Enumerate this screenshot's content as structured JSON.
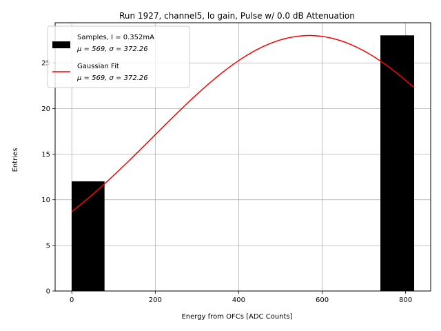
{
  "chart_data": {
    "type": "bar",
    "title": "Run 1927, channel5, lo gain, Pulse w/ 0.0 dB Attenuation",
    "xlabel": "Energy from OFCs [ADC Counts]",
    "ylabel": "Entries",
    "xlim": [
      -40,
      860
    ],
    "ylim": [
      0,
      29.4
    ],
    "xticks": [
      0,
      200,
      400,
      600,
      800
    ],
    "yticks": [
      0,
      5,
      10,
      15,
      20,
      25
    ],
    "grid": true,
    "legend_position": "top-left",
    "histogram": {
      "name": "Samples, I = 0.352mA",
      "name_line2": "μ = 569, σ = 372.26",
      "color": "#000000",
      "bins": [
        {
          "x0": 0,
          "x1": 78,
          "value": 12
        },
        {
          "x0": 78,
          "x1": 156,
          "value": 0
        },
        {
          "x0": 156,
          "x1": 234,
          "value": 0
        },
        {
          "x0": 234,
          "x1": 312,
          "value": 0
        },
        {
          "x0": 312,
          "x1": 390,
          "value": 0
        },
        {
          "x0": 390,
          "x1": 468,
          "value": 0
        },
        {
          "x0": 468,
          "x1": 546,
          "value": 0
        },
        {
          "x0": 546,
          "x1": 624,
          "value": 0
        },
        {
          "x0": 624,
          "x1": 702,
          "value": 0
        },
        {
          "x0": 702,
          "x1": 740,
          "value": 0
        },
        {
          "x0": 740,
          "x1": 820,
          "value": 28
        }
      ]
    },
    "fit": {
      "name": "Gaussian Fit",
      "name_line2": "μ = 569, σ = 372.26",
      "color": "#ff0000",
      "mu": 569,
      "sigma": 372.26,
      "amplitude": 28,
      "x_range": [
        0,
        820
      ]
    }
  }
}
